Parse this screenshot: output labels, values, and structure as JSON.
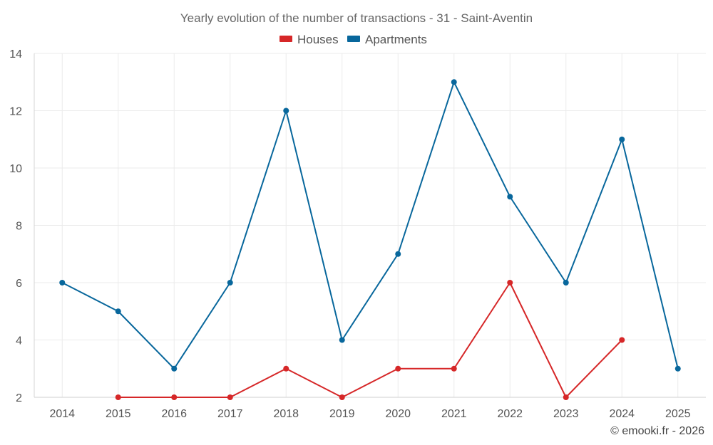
{
  "chart_data": {
    "type": "line",
    "title": "Yearly evolution of the number of transactions - 31 - Saint-Aventin",
    "categories": [
      "2014",
      "2015",
      "2016",
      "2017",
      "2018",
      "2019",
      "2020",
      "2021",
      "2022",
      "2023",
      "2024",
      "2025"
    ],
    "series": [
      {
        "name": "Houses",
        "color": "#d62728",
        "values": [
          null,
          2,
          2,
          2,
          3,
          2,
          3,
          3,
          6,
          2,
          4,
          null
        ]
      },
      {
        "name": "Apartments",
        "color": "#08679c",
        "values": [
          6,
          5,
          3,
          6,
          12,
          4,
          7,
          13,
          9,
          6,
          11,
          3
        ]
      }
    ],
    "ylim": [
      2,
      14
    ],
    "yticks": [
      2,
      4,
      6,
      8,
      10,
      12,
      14
    ],
    "xlabel": "",
    "ylabel": "",
    "grid": true,
    "legend": "top-center"
  },
  "footer": "© emooki.fr - 2026"
}
